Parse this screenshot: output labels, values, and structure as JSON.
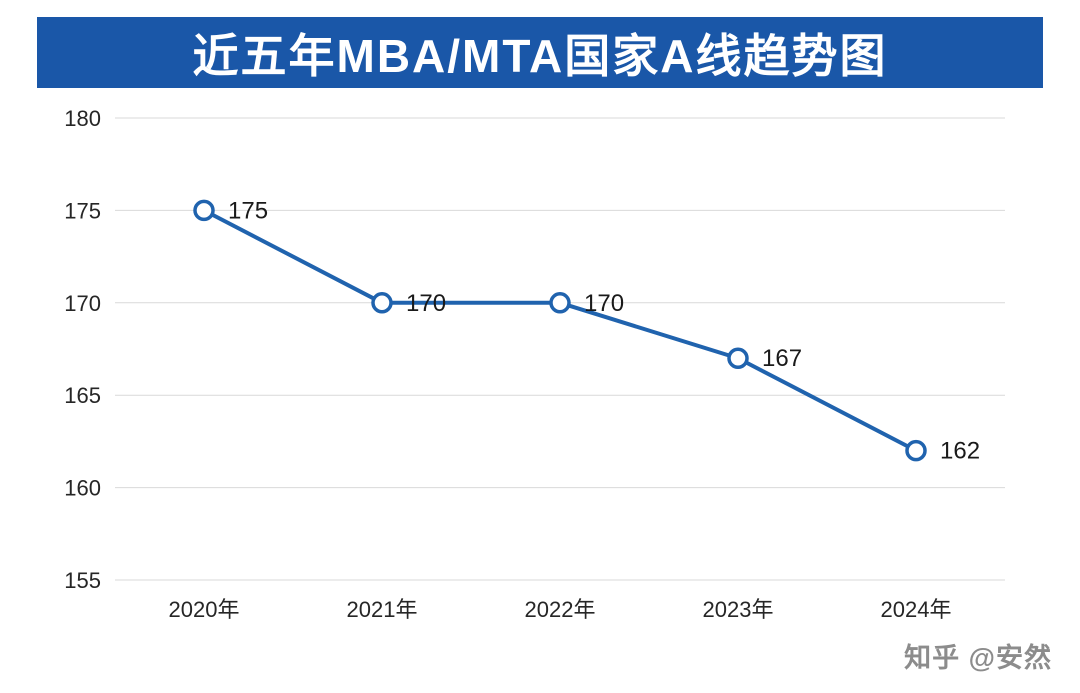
{
  "title": "近五年MBA/MTA国家A线趋势图",
  "watermark": "知乎 @安然",
  "colors": {
    "banner": "#1a57a8",
    "line": "#2063ae",
    "gridline": "#d9d9d9",
    "title_text": "#ffffff",
    "watermark_text": "#8c8c8c"
  },
  "chart_data": {
    "type": "line",
    "title": "近五年MBA/MTA国家A线趋势图",
    "categories": [
      "2020年",
      "2021年",
      "2022年",
      "2023年",
      "2024年"
    ],
    "series": [
      {
        "name": "MBA/MTA国家A线",
        "values": [
          175,
          170,
          170,
          167,
          162
        ]
      }
    ],
    "data_labels": [
      "175",
      "170",
      "170",
      "167",
      "162"
    ],
    "xlabel": "",
    "ylabel": "",
    "ylim": [
      155,
      180
    ],
    "ytick_step": 5,
    "yticks": [
      155,
      160,
      165,
      170,
      175,
      180
    ],
    "grid": true,
    "legend_position": "none",
    "marker": "open-circle"
  }
}
